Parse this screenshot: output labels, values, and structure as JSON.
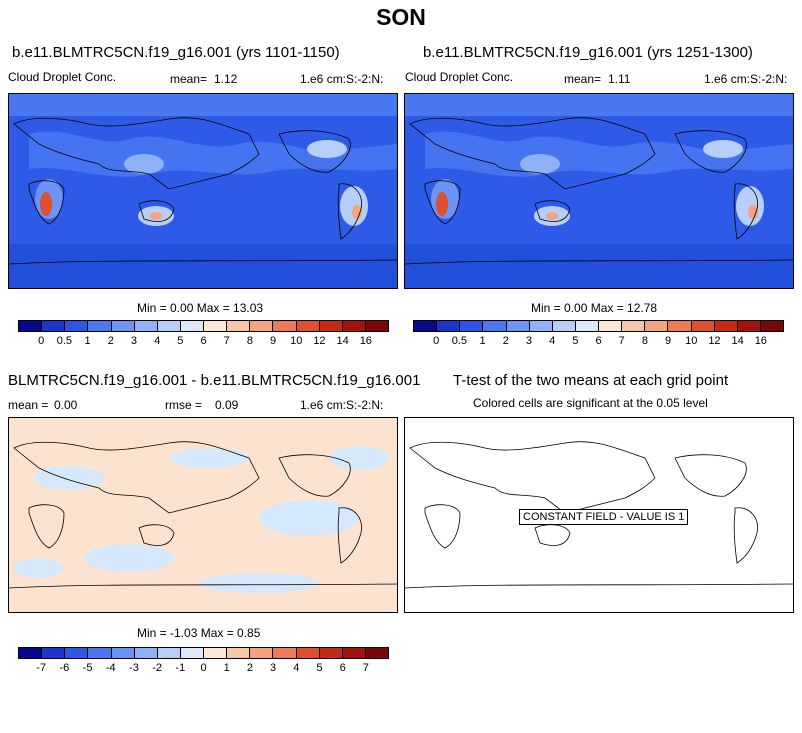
{
  "title": "SON",
  "panels": {
    "p1": {
      "title": "b.e11.BLMTRC5CN.f19_g16.001 (yrs 1101-1150)",
      "variable": "Cloud Droplet Conc.",
      "mean_label": "mean=",
      "mean_value": "1.12",
      "units": "1.e6 cm:S:-2:N:",
      "minmax": "Min =  0.00 Max =  13.03",
      "background_color": "#2e5ae8",
      "hotspots": [
        "South America (Amazon/Brazil)",
        "Southern Africa",
        "Australia",
        "Asia"
      ]
    },
    "p2": {
      "title": "b.e11.BLMTRC5CN.f19_g16.001 (yrs 1251-1300)",
      "variable": "Cloud Droplet Conc.",
      "mean_label": "mean=",
      "mean_value": "1.11",
      "units": "1.e6 cm:S:-2:N:",
      "minmax": "Min =  0.00 Max =  12.78",
      "background_color": "#2e5ae8"
    },
    "p3": {
      "title": "BLMTRC5CN.f19_g16.001 - b.e11.BLMTRC5CN.f19_g16.001",
      "mean_label": "mean =",
      "mean_value": "0.00",
      "rmse_label": "rmse =",
      "rmse_value": "0.09",
      "units": "1.e6 cm:S:-2:N:",
      "minmax": "Min = -1.03 Max =  0.85",
      "background_color": "#fde3cf",
      "negative_patch_color": "#d6e8fb"
    },
    "p4": {
      "title": "T-test of the two means at each grid point",
      "subtitle": "Colored cells are significant at the 0.05 level",
      "constant_label": "CONSTANT FIELD - VALUE IS 1"
    }
  },
  "colorbar_top": {
    "labels": [
      "0",
      "0.5",
      "1",
      "2",
      "3",
      "4",
      "5",
      "6",
      "7",
      "8",
      "9",
      "10",
      "12",
      "14",
      "16"
    ],
    "colors": [
      "#08088e",
      "#1b36c8",
      "#2f55e6",
      "#4a78f0",
      "#6b94f4",
      "#8fb1f6",
      "#b7cff8",
      "#dde9fb",
      "#fde6d4",
      "#f9c6a8",
      "#f3a37e",
      "#ec7b55",
      "#de4f30",
      "#c52a18",
      "#a3130c",
      "#7a0606"
    ]
  },
  "colorbar_bottom": {
    "labels": [
      "-7",
      "-6",
      "-5",
      "-4",
      "-3",
      "-2",
      "-1",
      "0",
      "1",
      "2",
      "3",
      "4",
      "5",
      "6",
      "7"
    ],
    "colors": [
      "#08088e",
      "#1b36c8",
      "#2f55e6",
      "#4a78f0",
      "#6b94f4",
      "#8fb1f6",
      "#b7cff8",
      "#dde9fb",
      "#fde6d4",
      "#f9c6a8",
      "#f3a37e",
      "#ec7b55",
      "#de4f30",
      "#c52a18",
      "#a3130c",
      "#7a0606"
    ]
  }
}
